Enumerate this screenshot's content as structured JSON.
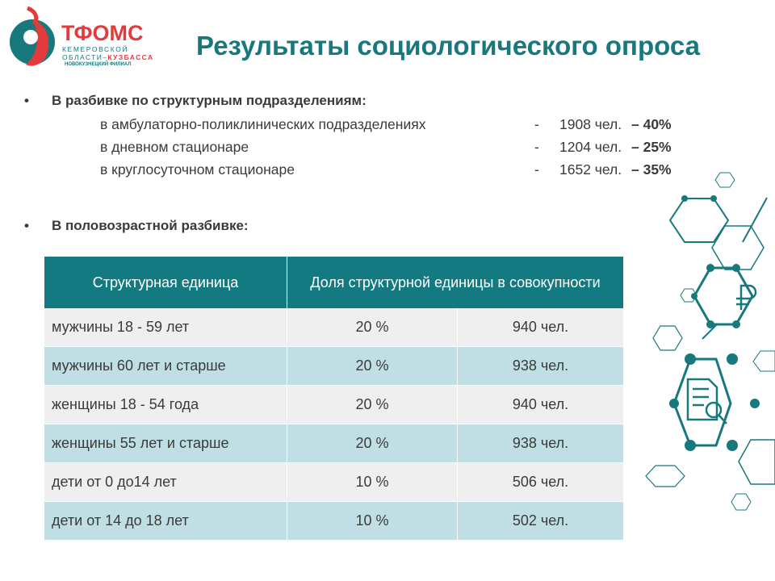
{
  "logo": {
    "name": "ТФОМС",
    "line1": "КЕМЕРОВСКОЙ",
    "line2a": "ОБЛАСТИ",
    "line2sep": "–",
    "line2b": "КУЗБАССА",
    "line3": "НОВОКУЗНЕЦКИЙ ФИЛИАЛ"
  },
  "title": "Результаты социологического опроса",
  "section1": {
    "heading": "В разбивке по структурным подразделениям:",
    "items": [
      {
        "label": "в амбулаторно-поликлинических подразделениях",
        "dash": "-",
        "count": "1908 чел.",
        "share": "– 40%"
      },
      {
        "label": "в дневном стационаре",
        "dash": "-",
        "count": "1204 чел.",
        "share": "– 25%"
      },
      {
        "label": "в круглосуточном стационаре",
        "dash": "-",
        "count": "1652 чел.",
        "share": "– 35%"
      }
    ]
  },
  "section2": {
    "heading": "В половозрастной разбивке:"
  },
  "table": {
    "header": [
      "Структурная единица",
      "Доля структурной единицы в совокупности"
    ],
    "rows": [
      [
        "мужчины 18 - 59 лет",
        "20 %",
        "940 чел."
      ],
      [
        "мужчины 60 лет и старше",
        "20 %",
        "938 чел."
      ],
      [
        "женщины 18 - 54 года",
        "20 %",
        "940 чел."
      ],
      [
        "женщины 55 лет и старше",
        "20 %",
        "938 чел."
      ],
      [
        "дети от 0 до14 лет",
        "10 %",
        "506 чел."
      ],
      [
        "дети от 14 до 18 лет",
        "10 %",
        "502 чел."
      ]
    ]
  }
}
